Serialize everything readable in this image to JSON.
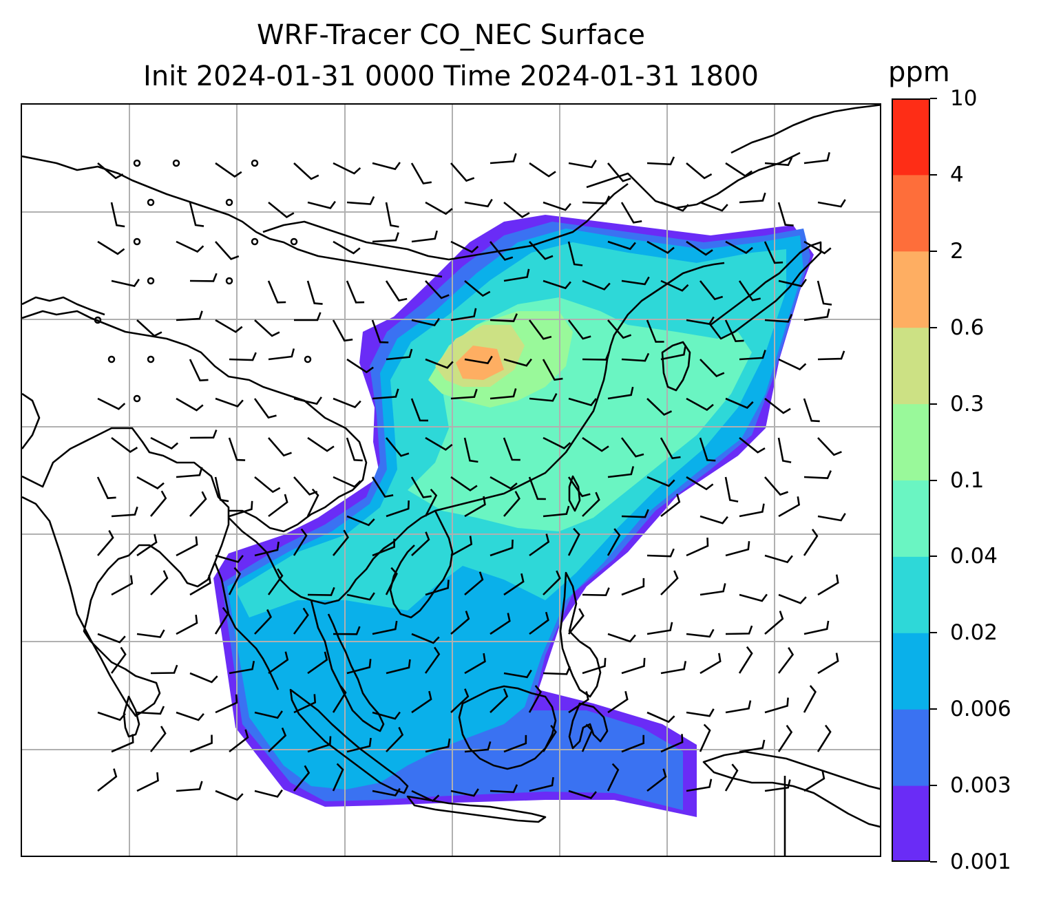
{
  "figure": {
    "title_line1": "WRF-Tracer CO_NEC Surface",
    "title_line2": "Init 2024-01-31 0000 Time 2024-01-31 1800"
  },
  "colorbar": {
    "unit": "ppm",
    "levels": [
      "0.001",
      "0.003",
      "0.006",
      "0.02",
      "0.04",
      "0.1",
      "0.3",
      "0.6",
      "2",
      "4",
      "10"
    ],
    "colors": [
      "#6a2cf6",
      "#3a72f2",
      "#0ab0ea",
      "#2ed8d8",
      "#6af5c2",
      "#99f99a",
      "#cce184",
      "#feae62",
      "#fe6e3a",
      "#fe2d16"
    ]
  },
  "map": {
    "gridlines": true,
    "coastline_color": "#000000",
    "gridline_color": "#b0b0b0"
  }
}
